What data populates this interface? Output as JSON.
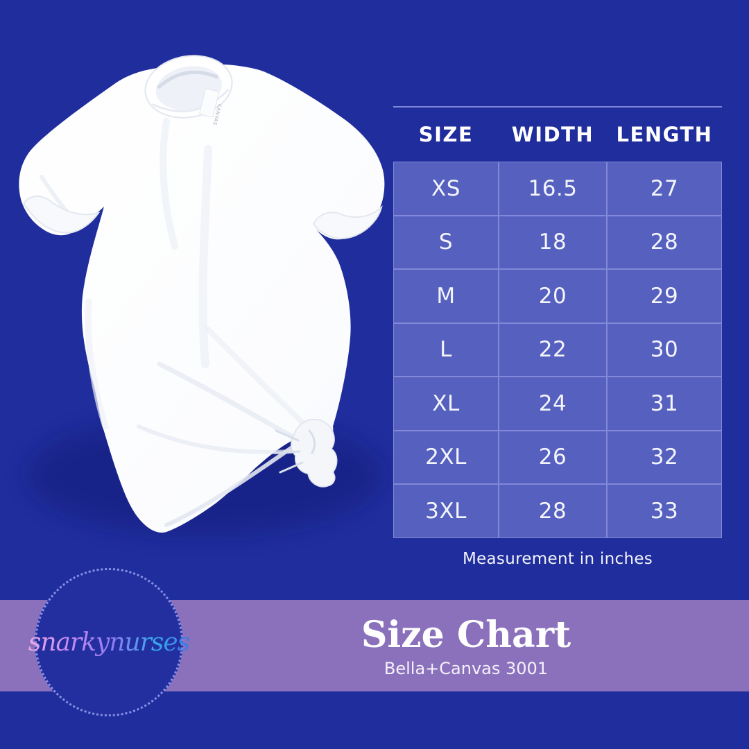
{
  "chart_data": {
    "type": "table",
    "title": "Size Chart",
    "subtitle": "Bella+Canvas 3001",
    "columns": [
      "SIZE",
      "WIDTH",
      "LENGTH"
    ],
    "rows": [
      [
        "XS",
        "16.5",
        "27"
      ],
      [
        "S",
        "18",
        "28"
      ],
      [
        "M",
        "20",
        "29"
      ],
      [
        "L",
        "22",
        "30"
      ],
      [
        "XL",
        "24",
        "31"
      ],
      [
        "2XL",
        "26",
        "32"
      ],
      [
        "3XL",
        "28",
        "33"
      ]
    ],
    "note": "Measurement in inches",
    "units": "inches",
    "legend_position": "none",
    "grid": true
  },
  "footer": {
    "title": "Size Chart",
    "subtitle": "Bella+Canvas 3001",
    "logo_text": "snarkynurses"
  },
  "product": {
    "description": "White knotted t-shirt mockup",
    "tag_text": "CANVAS"
  },
  "colors": {
    "background": "#202D9C",
    "table_row": "#5560BF",
    "table_grid": "#8289D8",
    "band": "#8B71BC",
    "logo_ring": "#8690E6",
    "logo_fill": "#232F9F",
    "text": "#FFFFFF"
  }
}
